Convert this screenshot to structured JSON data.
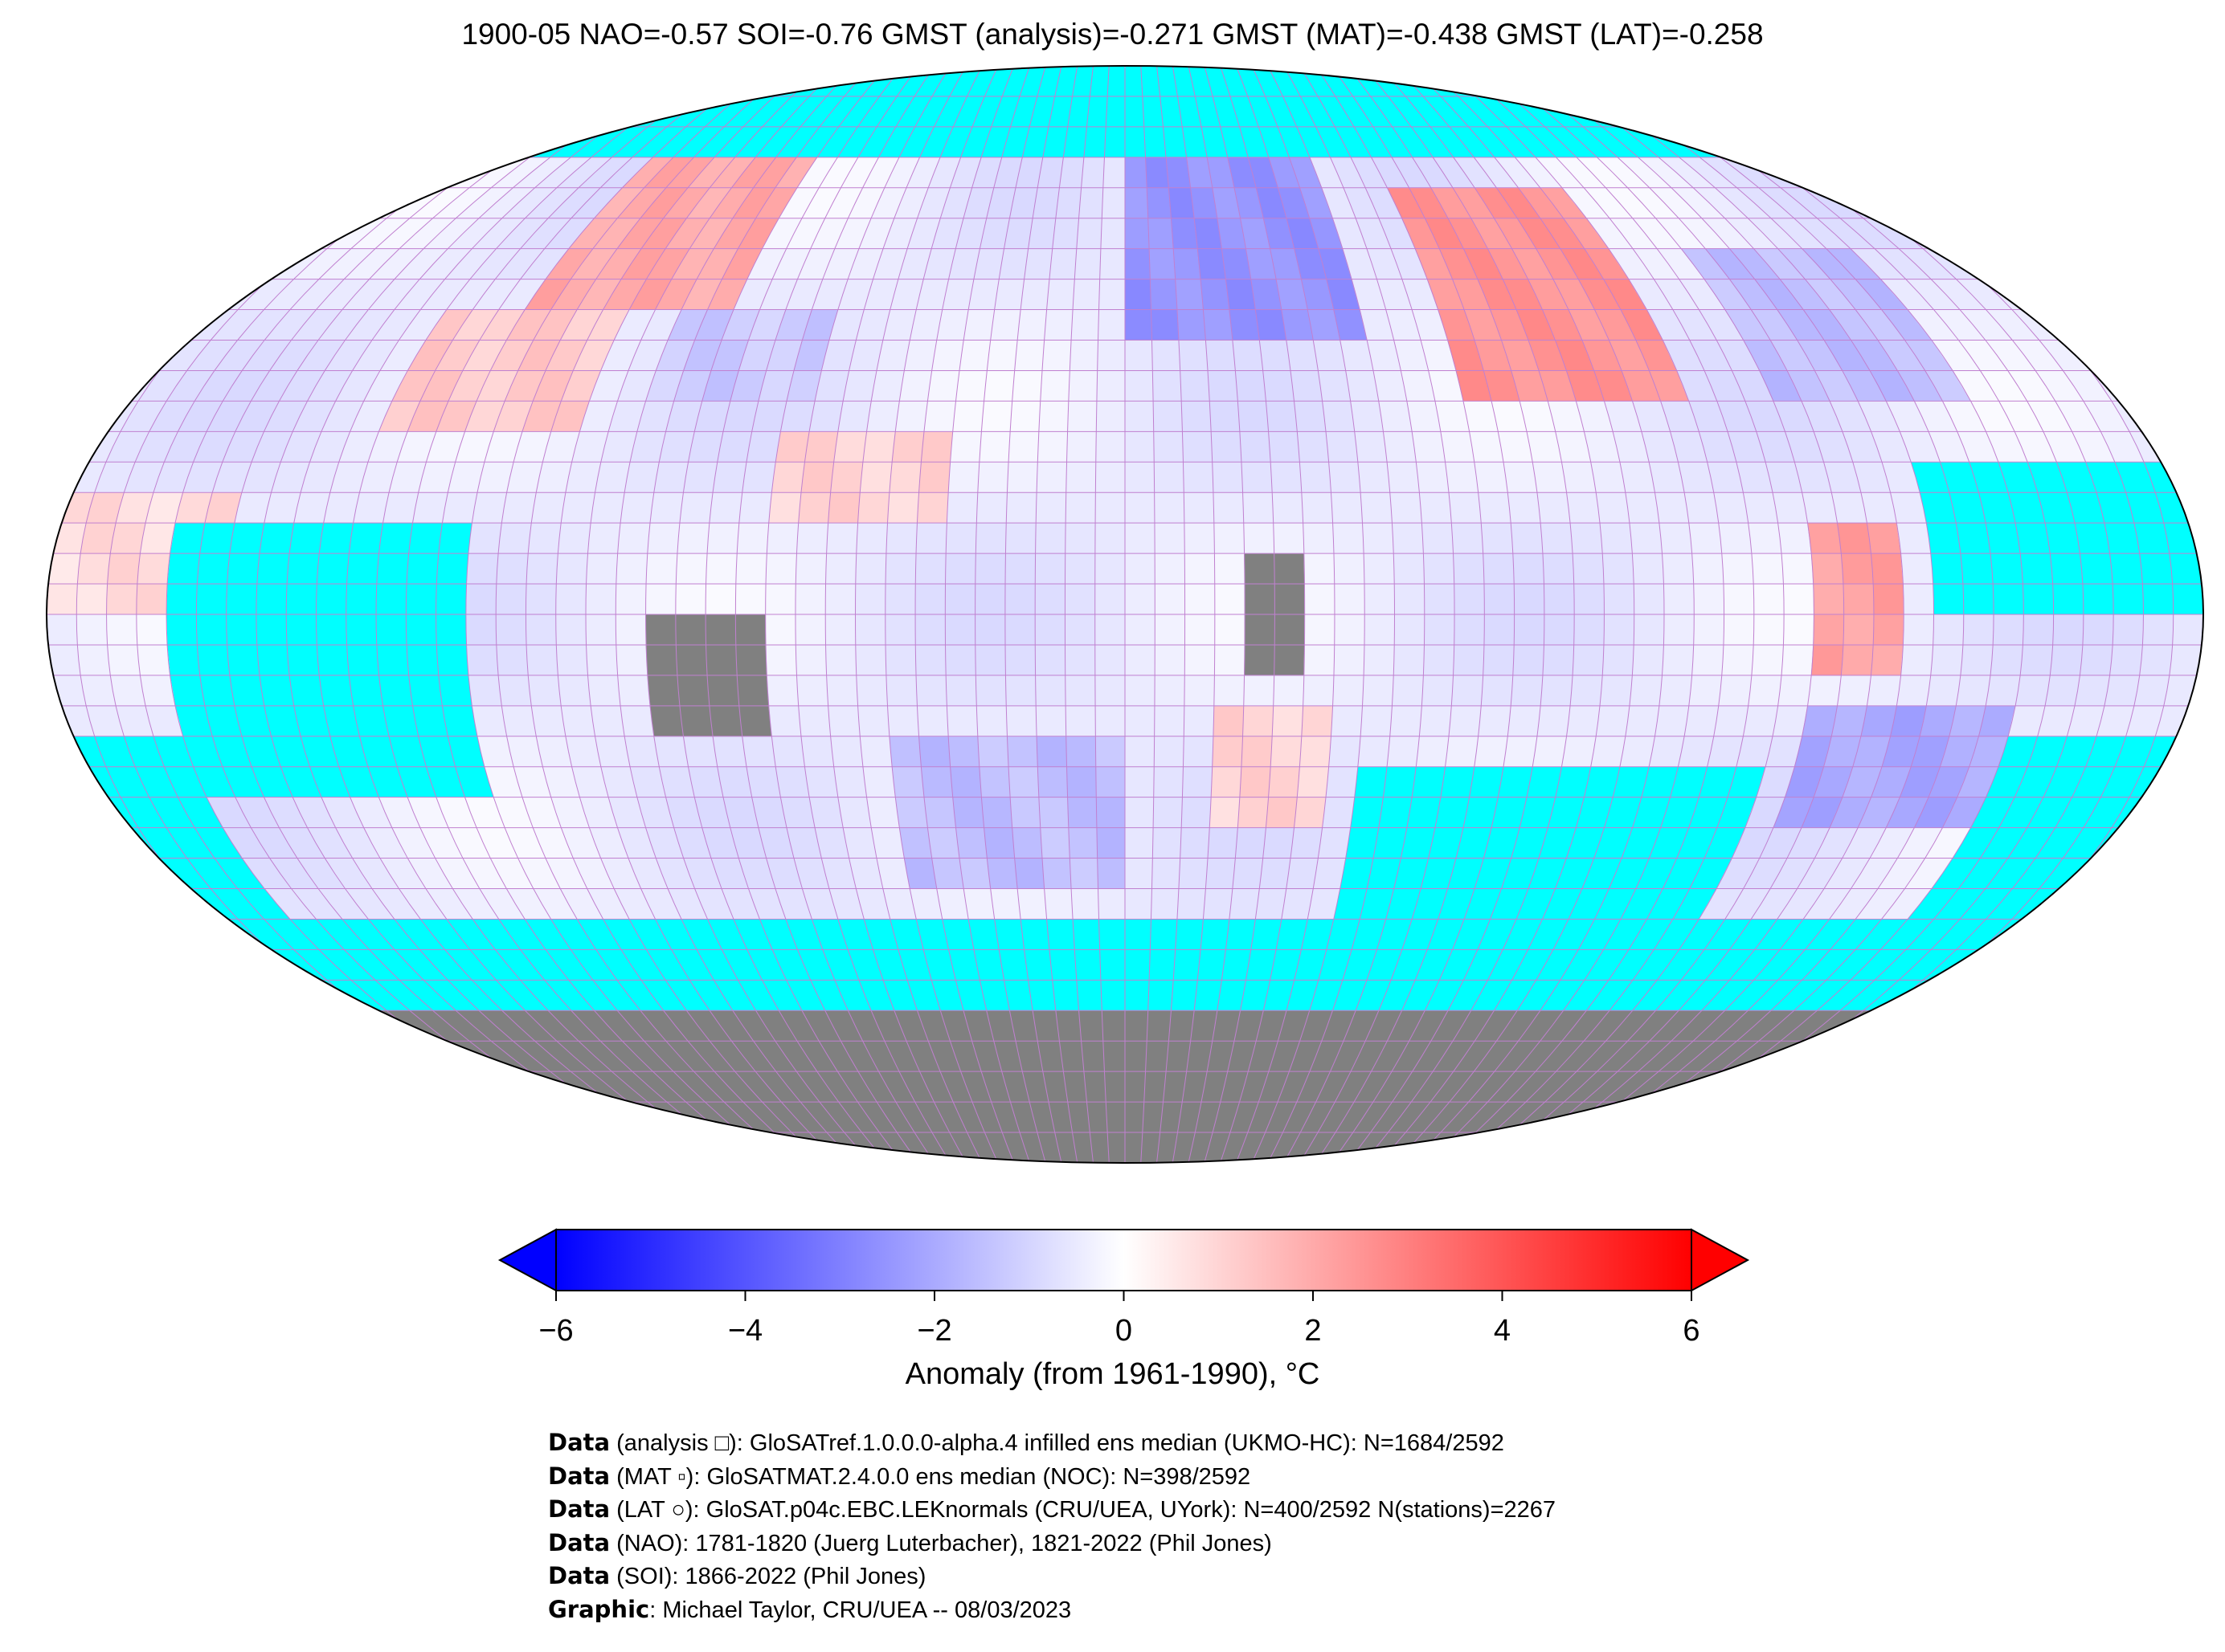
{
  "title": "1900-05 NAO=-0.57 SOI=-0.76 GMST (analysis)=-0.271 GMST (MAT)=-0.438 GMST (LAT)=-0.258",
  "colors": {
    "missing": "#00ffff",
    "land_mask": "#808080",
    "grid": "#c080d0",
    "low": "#0000ff",
    "mid": "#ffffff",
    "high": "#ff0000"
  },
  "colorbar": {
    "label": "Anomaly (from 1961-1990), °C",
    "range": [
      -6,
      6
    ],
    "ticks": [
      "−6",
      "−4",
      "−2",
      "0",
      "2",
      "4",
      "6"
    ],
    "tick_values": [
      -6,
      -4,
      -2,
      0,
      2,
      4,
      6
    ],
    "extend": "both"
  },
  "map": {
    "projection": "robinson",
    "grid_resolution_deg": 5,
    "default_anomaly": -0.5,
    "anomaly_regions": [
      {
        "lon": [
          -130,
          -95
        ],
        "lat": [
          30,
          50
        ],
        "value": 1.2
      },
      {
        "lon": [
          -115,
          -75
        ],
        "lat": [
          50,
          75
        ],
        "value": 2.0
      },
      {
        "lon": [
          -85,
          -55
        ],
        "lat": [
          35,
          50
        ],
        "value": -1.2
      },
      {
        "lon": [
          -60,
          -30
        ],
        "lat": [
          15,
          30
        ],
        "value": 1.0
      },
      {
        "lon": [
          0,
          45
        ],
        "lat": [
          45,
          75
        ],
        "value": -2.5
      },
      {
        "lon": [
          60,
          100
        ],
        "lat": [
          35,
          70
        ],
        "value": 2.5
      },
      {
        "lon": [
          115,
          150
        ],
        "lat": [
          35,
          60
        ],
        "value": -1.5
      },
      {
        "lon": [
          115,
          150
        ],
        "lat": [
          -35,
          -15
        ],
        "value": -2.0
      },
      {
        "lon": [
          115,
          130
        ],
        "lat": [
          -10,
          15
        ],
        "value": 2.2
      },
      {
        "lon": [
          15,
          35
        ],
        "lat": [
          -35,
          -15
        ],
        "value": 1.0
      },
      {
        "lon": [
          -40,
          0
        ],
        "lat": [
          -45,
          -20
        ],
        "value": -1.5
      },
      {
        "lon": [
          -180,
          -150
        ],
        "lat": [
          0,
          20
        ],
        "value": 0.8
      }
    ],
    "missing_regions": [
      {
        "lon": [
          -180,
          180
        ],
        "lat": [
          75,
          90
        ]
      },
      {
        "lon": [
          -180,
          180
        ],
        "lat": [
          -65,
          -50
        ]
      },
      {
        "lon": [
          -160,
          -110
        ],
        "lat": [
          -30,
          15
        ]
      },
      {
        "lon": [
          -180,
          -160
        ],
        "lat": [
          -50,
          -20
        ]
      },
      {
        "lon": [
          40,
          110
        ],
        "lat": [
          -50,
          -25
        ]
      },
      {
        "lon": [
          135,
          180
        ],
        "lat": [
          0,
          25
        ]
      },
      {
        "lon": [
          150,
          180
        ],
        "lat": [
          -50,
          -20
        ]
      },
      {
        "lon": [
          -20,
          10
        ],
        "lat": [
          -65,
          -50
        ]
      }
    ],
    "land_mask_regions": [
      {
        "lon": [
          20,
          30
        ],
        "lat": [
          -10,
          10
        ]
      },
      {
        "lon": [
          -80,
          -60
        ],
        "lat": [
          -20,
          0
        ]
      },
      {
        "lon": [
          -180,
          180
        ],
        "lat": [
          -90,
          -65
        ]
      }
    ]
  },
  "footer": [
    {
      "bold": "Data",
      "text": " (analysis □): GloSATref.1.0.0.0-alpha.4 infilled ens median (UKMO-HC): N=1684/2592"
    },
    {
      "bold": "Data",
      "text": " (MAT ▫): GloSATMAT.2.4.0.0 ens median (NOC): N=398/2592"
    },
    {
      "bold": "Data",
      "text": " (LAT ○): GloSAT.p04c.EBC.LEKnormals (CRU/UEA, UYork): N=400/2592 N(stations)=2267"
    },
    {
      "bold": "Data",
      "text": " (NAO): 1781-1820 (Juerg Luterbacher), 1821-2022 (Phil Jones)"
    },
    {
      "bold": "Data",
      "text": " (SOI): 1866-2022 (Phil Jones)"
    },
    {
      "bold": "Graphic",
      "text": ": Michael Taylor, CRU/UEA -- 08/03/2023"
    }
  ]
}
